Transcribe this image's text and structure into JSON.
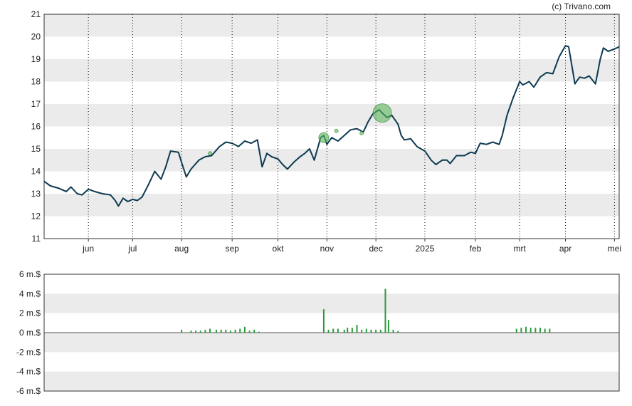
{
  "copyright": "(c) Trivano.com",
  "colors": {
    "price_line": "#0d3a52",
    "band": "#ebebeb",
    "grid": "#000000",
    "volume_bar": "#2a9a3a",
    "marker_fill": "#5cb85c",
    "marker_stroke": "#3c8c3c"
  },
  "chart_data": [
    {
      "type": "line",
      "title": "",
      "xlabel": "",
      "ylabel": "",
      "ylim": [
        11,
        21
      ],
      "yticks": [
        11,
        12,
        13,
        14,
        15,
        16,
        17,
        18,
        19,
        20,
        21
      ],
      "grid": "vertical dotted lines at month ticks, alternating horizontal bands",
      "xrange": [
        "2024-05-06",
        "2025-05-05"
      ],
      "xticks": [
        {
          "label": "jun",
          "date": "2024-06-03"
        },
        {
          "label": "jul",
          "date": "2024-07-01"
        },
        {
          "label": "aug",
          "date": "2024-08-01"
        },
        {
          "label": "sep",
          "date": "2024-09-02"
        },
        {
          "label": "okt",
          "date": "2024-10-01"
        },
        {
          "label": "nov",
          "date": "2024-11-01"
        },
        {
          "label": "dec",
          "date": "2024-12-02"
        },
        {
          "label": "2025",
          "date": "2025-01-02"
        },
        {
          "label": "feb",
          "date": "2025-02-03"
        },
        {
          "label": "mrt",
          "date": "2025-03-03"
        },
        {
          "label": "apr",
          "date": "2025-04-01"
        },
        {
          "label": "mei",
          "date": "2025-05-02"
        }
      ],
      "series": [
        {
          "points": [
            [
              "2024-05-06",
              13.55
            ],
            [
              "2024-05-10",
              13.35
            ],
            [
              "2024-05-15",
              13.25
            ],
            [
              "2024-05-20",
              13.1
            ],
            [
              "2024-05-23",
              13.3
            ],
            [
              "2024-05-27",
              13.0
            ],
            [
              "2024-05-30",
              12.95
            ],
            [
              "2024-06-03",
              13.2
            ],
            [
              "2024-06-07",
              13.1
            ],
            [
              "2024-06-12",
              13.0
            ],
            [
              "2024-06-17",
              12.95
            ],
            [
              "2024-06-20",
              12.7
            ],
            [
              "2024-06-22",
              12.45
            ],
            [
              "2024-06-25",
              12.8
            ],
            [
              "2024-06-28",
              12.65
            ],
            [
              "2024-07-01",
              12.75
            ],
            [
              "2024-07-04",
              12.7
            ],
            [
              "2024-07-07",
              12.85
            ],
            [
              "2024-07-11",
              13.4
            ],
            [
              "2024-07-15",
              14.0
            ],
            [
              "2024-07-19",
              13.65
            ],
            [
              "2024-07-22",
              14.2
            ],
            [
              "2024-07-25",
              14.9
            ],
            [
              "2024-07-30",
              14.85
            ],
            [
              "2024-08-01",
              14.4
            ],
            [
              "2024-08-04",
              13.75
            ],
            [
              "2024-08-07",
              14.1
            ],
            [
              "2024-08-12",
              14.5
            ],
            [
              "2024-08-16",
              14.65
            ],
            [
              "2024-08-20",
              14.7
            ],
            [
              "2024-08-25",
              15.1
            ],
            [
              "2024-08-29",
              15.3
            ],
            [
              "2024-09-02",
              15.25
            ],
            [
              "2024-09-06",
              15.1
            ],
            [
              "2024-09-10",
              15.35
            ],
            [
              "2024-09-14",
              15.25
            ],
            [
              "2024-09-18",
              15.4
            ],
            [
              "2024-09-21",
              14.2
            ],
            [
              "2024-09-24",
              14.8
            ],
            [
              "2024-09-27",
              14.65
            ],
            [
              "2024-10-01",
              14.55
            ],
            [
              "2024-10-04",
              14.3
            ],
            [
              "2024-10-07",
              14.1
            ],
            [
              "2024-10-11",
              14.4
            ],
            [
              "2024-10-15",
              14.65
            ],
            [
              "2024-10-18",
              14.8
            ],
            [
              "2024-10-21",
              15.0
            ],
            [
              "2024-10-24",
              14.5
            ],
            [
              "2024-10-28",
              15.5
            ],
            [
              "2024-10-30",
              15.6
            ],
            [
              "2024-11-01",
              15.2
            ],
            [
              "2024-11-04",
              15.5
            ],
            [
              "2024-11-08",
              15.35
            ],
            [
              "2024-11-12",
              15.6
            ],
            [
              "2024-11-16",
              15.85
            ],
            [
              "2024-11-20",
              15.9
            ],
            [
              "2024-11-24",
              15.75
            ],
            [
              "2024-11-27",
              16.2
            ],
            [
              "2024-11-30",
              16.55
            ],
            [
              "2024-12-04",
              16.75
            ],
            [
              "2024-12-06",
              16.6
            ],
            [
              "2024-12-09",
              16.4
            ],
            [
              "2024-12-12",
              16.5
            ],
            [
              "2024-12-16",
              16.1
            ],
            [
              "2024-12-18",
              15.6
            ],
            [
              "2024-12-20",
              15.4
            ],
            [
              "2024-12-24",
              15.45
            ],
            [
              "2024-12-28",
              15.1
            ],
            [
              "2025-01-02",
              14.9
            ],
            [
              "2025-01-06",
              14.5
            ],
            [
              "2025-01-09",
              14.3
            ],
            [
              "2025-01-13",
              14.5
            ],
            [
              "2025-01-16",
              14.5
            ],
            [
              "2025-01-18",
              14.35
            ],
            [
              "2025-01-22",
              14.7
            ],
            [
              "2025-01-27",
              14.7
            ],
            [
              "2025-01-31",
              14.85
            ],
            [
              "2025-02-03",
              14.8
            ],
            [
              "2025-02-06",
              15.25
            ],
            [
              "2025-02-10",
              15.2
            ],
            [
              "2025-02-14",
              15.3
            ],
            [
              "2025-02-18",
              15.2
            ],
            [
              "2025-02-20",
              15.6
            ],
            [
              "2025-02-23",
              16.5
            ],
            [
              "2025-02-27",
              17.3
            ],
            [
              "2025-03-03",
              18.0
            ],
            [
              "2025-03-05",
              17.85
            ],
            [
              "2025-03-09",
              18.0
            ],
            [
              "2025-03-12",
              17.75
            ],
            [
              "2025-03-16",
              18.2
            ],
            [
              "2025-03-20",
              18.4
            ],
            [
              "2025-03-24",
              18.35
            ],
            [
              "2025-03-28",
              19.1
            ],
            [
              "2025-04-01",
              19.6
            ],
            [
              "2025-04-03",
              19.55
            ],
            [
              "2025-04-07",
              17.9
            ],
            [
              "2025-04-10",
              18.2
            ],
            [
              "2025-04-13",
              18.15
            ],
            [
              "2025-04-16",
              18.25
            ],
            [
              "2025-04-20",
              17.9
            ],
            [
              "2025-04-23",
              19.0
            ],
            [
              "2025-04-25",
              19.5
            ],
            [
              "2025-04-28",
              19.35
            ],
            [
              "2025-05-02",
              19.45
            ],
            [
              "2025-05-05",
              19.55
            ]
          ]
        }
      ],
      "markers": [
        {
          "date": "2024-08-19",
          "value": 14.8,
          "size": "small"
        },
        {
          "date": "2024-10-30",
          "value": 15.5,
          "size": "medium"
        },
        {
          "date": "2024-11-07",
          "value": 15.8,
          "size": "small"
        },
        {
          "date": "2024-11-23",
          "value": 15.7,
          "size": "small"
        },
        {
          "date": "2024-12-06",
          "value": 16.6,
          "size": "large"
        }
      ]
    },
    {
      "type": "bar",
      "title": "",
      "xlabel": "",
      "ylabel": "",
      "ylim": [
        -6,
        6
      ],
      "yticks": [
        {
          "value": 6,
          "label": "6 m.$"
        },
        {
          "value": 4,
          "label": "4 m.$"
        },
        {
          "value": 2,
          "label": "2 m.$"
        },
        {
          "value": 0,
          "label": "0 m.$"
        },
        {
          "value": -2,
          "label": "-2 m.$"
        },
        {
          "value": -4,
          "label": "-4 m.$"
        },
        {
          "value": -6,
          "label": "-6 m.$"
        }
      ],
      "grid": "alternating horizontal bands",
      "bars": [
        [
          "2024-08-01",
          0.3
        ],
        [
          "2024-08-07",
          0.2
        ],
        [
          "2024-08-10",
          0.2
        ],
        [
          "2024-08-13",
          0.2
        ],
        [
          "2024-08-16",
          0.3
        ],
        [
          "2024-08-19",
          0.4
        ],
        [
          "2024-08-23",
          0.3
        ],
        [
          "2024-08-26",
          0.3
        ],
        [
          "2024-08-29",
          0.3
        ],
        [
          "2024-09-01",
          0.2
        ],
        [
          "2024-09-04",
          0.3
        ],
        [
          "2024-09-07",
          0.4
        ],
        [
          "2024-09-10",
          0.6
        ],
        [
          "2024-09-13",
          0.2
        ],
        [
          "2024-09-16",
          0.3
        ],
        [
          "2024-09-19",
          0.1
        ],
        [
          "2024-10-30",
          2.4
        ],
        [
          "2024-11-02",
          0.3
        ],
        [
          "2024-11-05",
          0.4
        ],
        [
          "2024-11-08",
          0.4
        ],
        [
          "2024-11-12",
          0.3
        ],
        [
          "2024-11-14",
          0.5
        ],
        [
          "2024-11-17",
          0.5
        ],
        [
          "2024-11-20",
          0.8
        ],
        [
          "2024-11-23",
          0.3
        ],
        [
          "2024-11-26",
          0.4
        ],
        [
          "2024-11-29",
          0.3
        ],
        [
          "2024-12-02",
          0.3
        ],
        [
          "2024-12-05",
          0.3
        ],
        [
          "2024-12-08",
          4.5
        ],
        [
          "2024-12-10",
          1.3
        ],
        [
          "2024-12-13",
          0.3
        ],
        [
          "2024-12-16",
          0.15
        ],
        [
          "2025-03-01",
          0.4
        ],
        [
          "2025-03-04",
          0.5
        ],
        [
          "2025-03-07",
          0.6
        ],
        [
          "2025-03-10",
          0.5
        ],
        [
          "2025-03-13",
          0.5
        ],
        [
          "2025-03-16",
          0.5
        ],
        [
          "2025-03-19",
          0.4
        ],
        [
          "2025-03-22",
          0.4
        ]
      ]
    }
  ]
}
